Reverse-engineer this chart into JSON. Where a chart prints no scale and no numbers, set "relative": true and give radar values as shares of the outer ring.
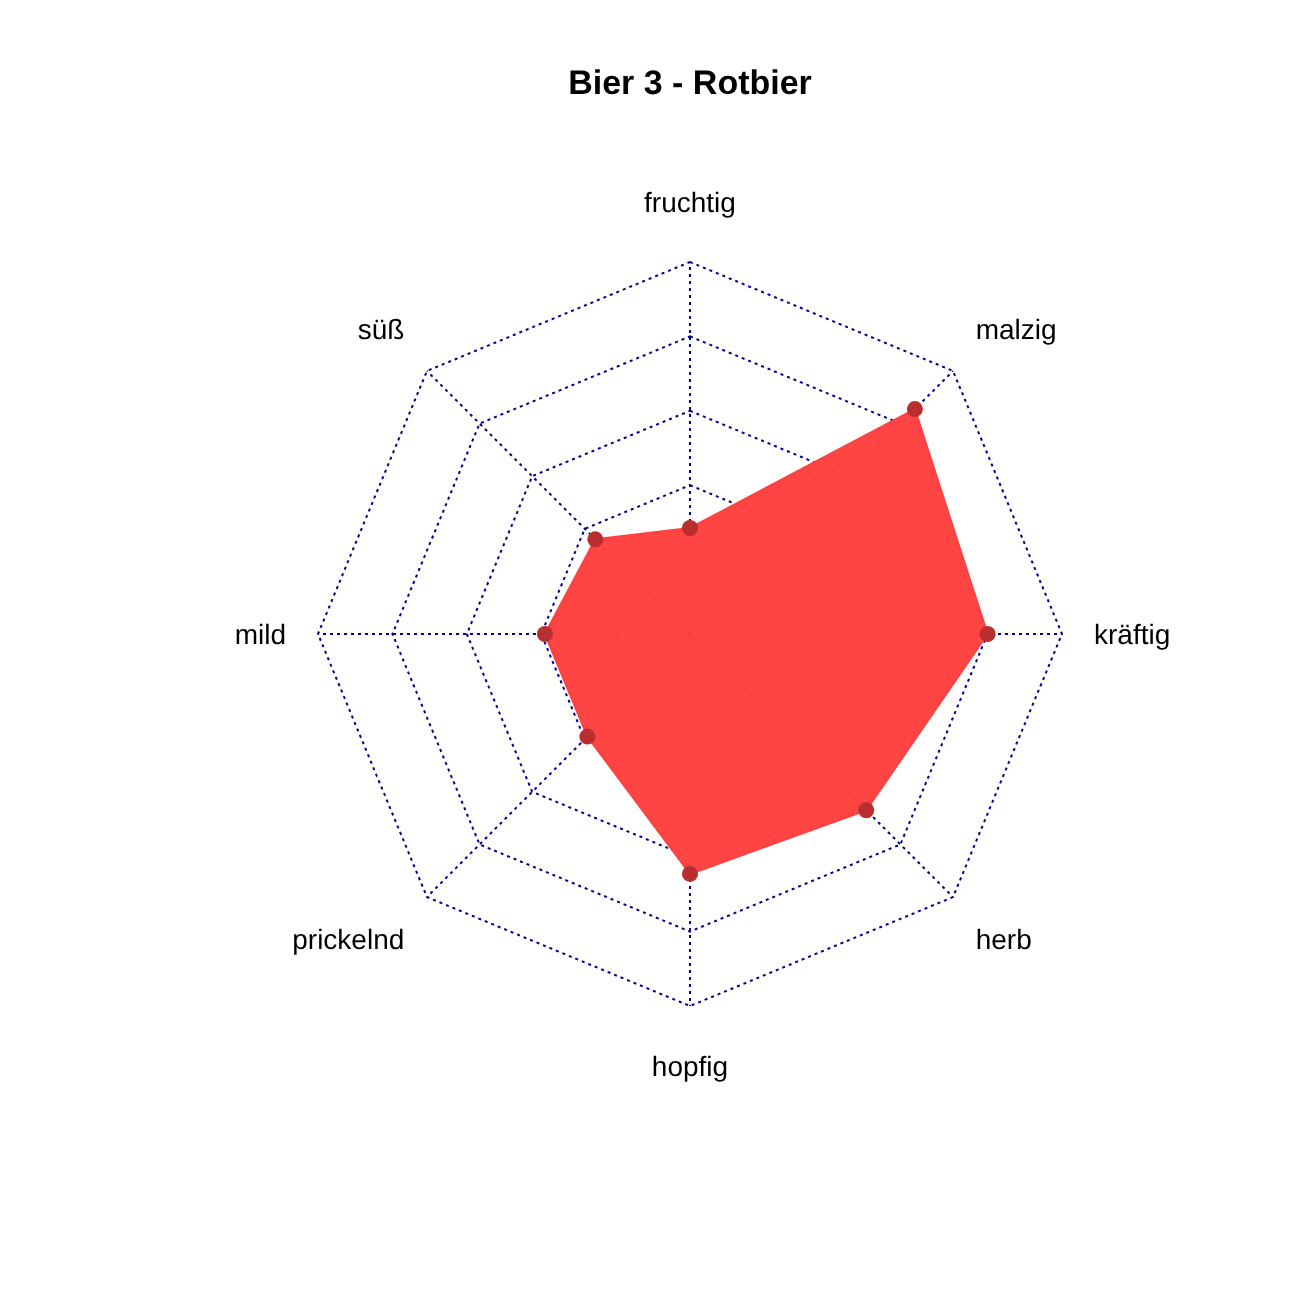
{
  "chart_data": {
    "type": "radar",
    "title": "Bier 3 - Rotbier",
    "relative": true,
    "categories": [
      "fruchtig",
      "malzig",
      "kräftig",
      "herb",
      "hopfig",
      "prickelnd",
      "mild",
      "süß"
    ],
    "marker": "circle",
    "series": [
      {
        "color": "#ff4040",
        "values": [
          0.285,
          0.855,
          0.8,
          0.67,
          0.645,
          0.39,
          0.39,
          0.36
        ]
      }
    ]
  }
}
